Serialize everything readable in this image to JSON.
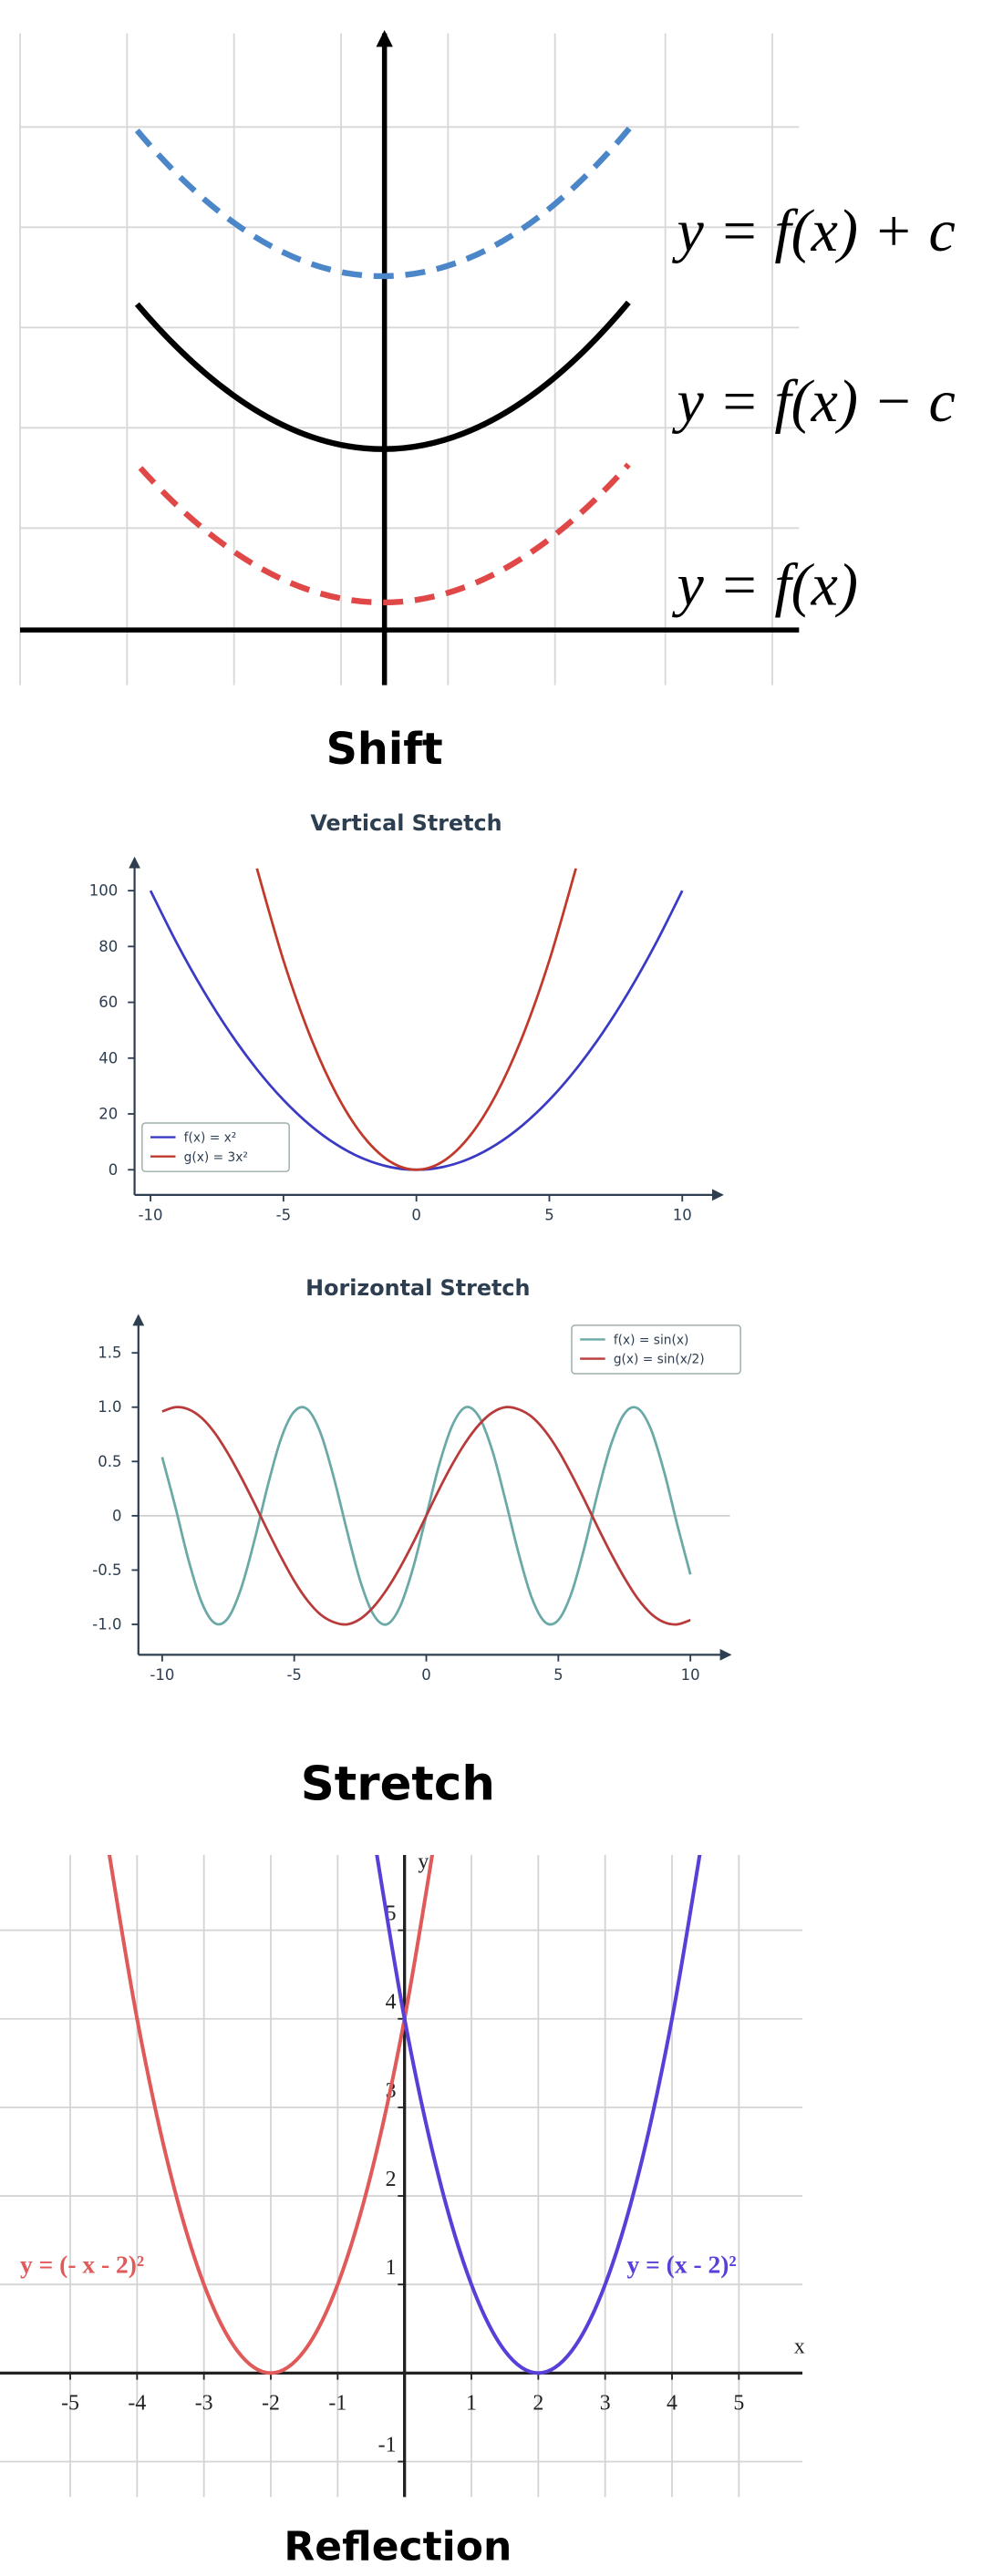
{
  "shift_labels": [
    "y = f(x) + c",
    "y = f(x) − c",
    "y = f(x)"
  ],
  "captions": [
    "Shift",
    "Stretch",
    "Reflection"
  ],
  "chart_data": [
    {
      "type": "line",
      "title": "Vertical Stretch",
      "x": [
        -10,
        -9,
        -8,
        -7,
        -6,
        -5,
        -4,
        -3,
        -2,
        -1,
        0,
        1,
        2,
        3,
        4,
        5,
        6,
        7,
        8,
        9,
        10
      ],
      "series": [
        {
          "name": "f(x) = x²",
          "color": "#3a3ac4",
          "values": [
            100,
            81,
            64,
            49,
            36,
            25,
            16,
            9,
            4,
            1,
            0,
            1,
            4,
            9,
            16,
            25,
            36,
            49,
            64,
            81,
            100
          ]
        },
        {
          "name": "g(x) = 3x²",
          "color": "#c0392b",
          "values": [
            null,
            null,
            null,
            null,
            108,
            75,
            48,
            27,
            12,
            3,
            0,
            3,
            12,
            27,
            48,
            75,
            108,
            null,
            null,
            null,
            null
          ]
        }
      ],
      "xlim": [
        -10.6,
        11.5
      ],
      "ylim": [
        -9,
        108
      ],
      "xticks": [
        -10,
        -5,
        0,
        5,
        10
      ],
      "yticks": [
        0,
        20,
        40,
        60,
        80,
        100
      ],
      "grid": false,
      "legend": "lower left"
    },
    {
      "type": "line",
      "title": "Horizontal Stretch",
      "x": [
        -10,
        -9.5,
        -9,
        -8.5,
        -8,
        -7.5,
        -7,
        -6.5,
        -6,
        -5.5,
        -5,
        -4.5,
        -4,
        -3.5,
        -3,
        -2.5,
        -2,
        -1.5,
        -1,
        -0.5,
        0,
        0.5,
        1,
        1.5,
        2,
        2.5,
        3,
        3.5,
        4,
        4.5,
        5,
        5.5,
        6,
        6.5,
        7,
        7.5,
        8,
        8.5,
        9,
        9.5,
        10
      ],
      "series": [
        {
          "name": "f(x) = sin(x)",
          "color": "#6aa9a6",
          "values": [
            0.54,
            0.08,
            -0.41,
            -0.8,
            -0.99,
            -0.94,
            -0.66,
            -0.22,
            0.28,
            0.71,
            0.96,
            0.98,
            0.76,
            0.35,
            -0.14,
            -0.6,
            -0.91,
            -1.0,
            -0.84,
            -0.48,
            0,
            0.48,
            0.84,
            1.0,
            0.91,
            0.6,
            0.14,
            -0.35,
            -0.76,
            -0.98,
            -0.96,
            -0.71,
            -0.28,
            0.22,
            0.66,
            0.94,
            0.99,
            0.8,
            0.41,
            -0.08,
            -0.54
          ]
        },
        {
          "name": "g(x) = sin(x/2)",
          "color": "#b83a3a",
          "values": [
            0.96,
            1.0,
            0.98,
            0.9,
            0.76,
            0.57,
            0.35,
            0.11,
            -0.14,
            -0.38,
            -0.6,
            -0.78,
            -0.91,
            -0.98,
            -1.0,
            -0.95,
            -0.84,
            -0.68,
            -0.48,
            -0.25,
            0,
            0.25,
            0.48,
            0.68,
            0.84,
            0.95,
            1.0,
            0.98,
            0.91,
            0.78,
            0.6,
            0.38,
            0.14,
            -0.11,
            -0.35,
            -0.57,
            -0.76,
            -0.9,
            -0.98,
            -1.0,
            -0.96
          ]
        }
      ],
      "xlim": [
        -10.9,
        11.5
      ],
      "ylim": [
        -1.28,
        1.75
      ],
      "xticks": [
        -10,
        -5,
        0,
        5,
        10
      ],
      "yticks": [
        {
          "value": -1,
          "label": "-1.0"
        },
        -0.5,
        0,
        0.5,
        {
          "value": 1,
          "label": "1.0"
        },
        1.5
      ],
      "grid": false,
      "zero_line": true,
      "legend": "upper right"
    },
    {
      "type": "line",
      "xlabel": "x",
      "ylabel": "y",
      "x": [
        -4.5,
        -4,
        -3.5,
        -3,
        -2.5,
        -2,
        -1.5,
        -1,
        -0.5,
        0,
        0.5,
        1,
        1.5,
        2,
        2.5,
        3,
        3.5,
        4,
        4.5
      ],
      "series": [
        {
          "name": "y = (- x - 2)²",
          "color": "#e05a5a",
          "values": [
            6.25,
            4,
            2.25,
            1,
            0.25,
            0,
            0.25,
            1,
            2.25,
            4,
            6.25,
            null,
            null,
            null,
            null,
            null,
            null,
            null,
            null
          ]
        },
        {
          "name": "y = (x - 2)²",
          "color": "#5a3ed8",
          "values": [
            null,
            null,
            null,
            null,
            null,
            null,
            null,
            null,
            6.25,
            4,
            2.25,
            1,
            0.25,
            0,
            0.25,
            1,
            2.25,
            4,
            6.25
          ]
        }
      ],
      "xlim": [
        -6.05,
        5.95
      ],
      "ylim": [
        -1.4,
        5.85
      ],
      "xticks": [
        -5,
        -4,
        -3,
        -2,
        -1,
        1,
        2,
        3,
        4,
        5
      ],
      "yticks": [
        -1,
        1,
        2,
        3,
        4,
        5
      ],
      "grid": true,
      "legend": "inline"
    }
  ]
}
